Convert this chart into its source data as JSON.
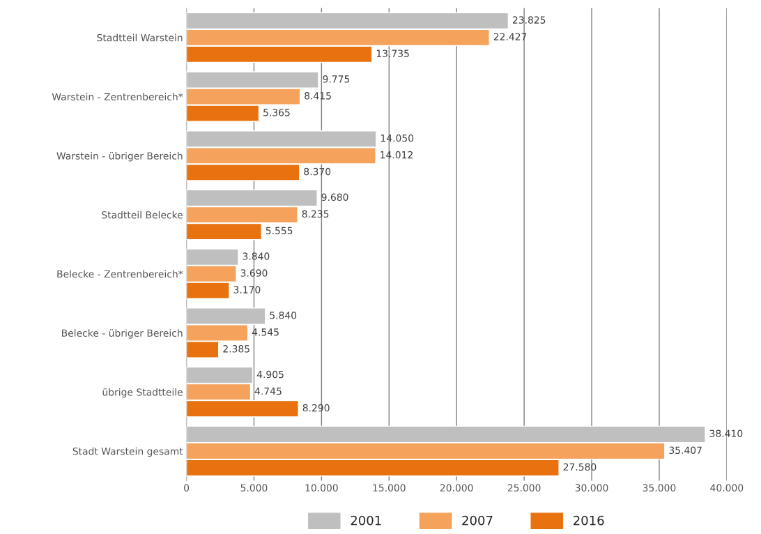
{
  "chart_data": {
    "type": "bar",
    "orientation": "horizontal",
    "categories": [
      "Stadtteil Warstein",
      "Warstein - Zentrenbereich*",
      "Warstein - übriger Bereich",
      "Stadtteil Belecke",
      "Belecke - Zentrenbereich*",
      "Belecke - übriger Bereich",
      "übrige Stadtteile",
      "Stadt Warstein gesamt"
    ],
    "series": [
      {
        "name": "2001",
        "color": "#bfbfbf",
        "values": [
          23825,
          9775,
          14050,
          9680,
          3840,
          5840,
          4905,
          38410
        ],
        "value_labels": [
          "23.825",
          "9.775",
          "14.050",
          "9.680",
          "3.840",
          "5.840",
          "4.905",
          "38.410"
        ]
      },
      {
        "name": "2007",
        "color": "#f5a25d",
        "values": [
          22427,
          8415,
          14012,
          8235,
          3690,
          4545,
          4745,
          35407
        ],
        "value_labels": [
          "22.427",
          "8.415",
          "14.012",
          "8.235",
          "3.690",
          "4.545",
          "4.745",
          "35.407"
        ]
      },
      {
        "name": "2016",
        "color": "#e8720f",
        "values": [
          13735,
          5365,
          8370,
          5555,
          3170,
          2385,
          8290,
          27580
        ],
        "value_labels": [
          "13.735",
          "5.365",
          "8.370",
          "5.555",
          "3.170",
          "2.385",
          "8.290",
          "27.580"
        ]
      }
    ],
    "xlim": [
      0,
      40000
    ],
    "xticks": [
      {
        "value": 0,
        "label": "0"
      },
      {
        "value": 5000,
        "label": "5.000"
      },
      {
        "value": 10000,
        "label": "10.000"
      },
      {
        "value": 15000,
        "label": "15.000"
      },
      {
        "value": 20000,
        "label": "20.000"
      },
      {
        "value": 25000,
        "label": "25.000"
      },
      {
        "value": 30000,
        "label": "30.000"
      },
      {
        "value": 35000,
        "label": "35.000"
      },
      {
        "value": 40000,
        "label": "40.000"
      }
    ],
    "grid": "x",
    "legend": "bottom"
  }
}
